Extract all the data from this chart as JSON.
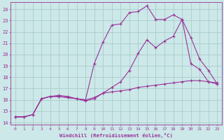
{
  "xlabel": "Windchill (Refroidissement éolien,°C)",
  "background_color": "#cce8e8",
  "grid_color": "#aacccc",
  "line_color": "#993399",
  "xlim": [
    -0.5,
    23.5
  ],
  "ylim": [
    13.8,
    24.6
  ],
  "yticks": [
    14,
    15,
    16,
    17,
    18,
    19,
    20,
    21,
    22,
    23,
    24
  ],
  "xticks": [
    0,
    1,
    2,
    3,
    4,
    5,
    6,
    7,
    8,
    9,
    10,
    11,
    12,
    13,
    14,
    15,
    16,
    17,
    18,
    19,
    20,
    21,
    22,
    23
  ],
  "series": [
    {
      "x": [
        0,
        1,
        2,
        3,
        4,
        5,
        6,
        7,
        8,
        9,
        10,
        11,
        12,
        13,
        14,
        15,
        16,
        17,
        18,
        19,
        20,
        21,
        22,
        23
      ],
      "y": [
        14.5,
        14.5,
        14.7,
        16.1,
        16.3,
        16.3,
        16.2,
        16.1,
        16.0,
        19.2,
        21.1,
        22.6,
        22.7,
        23.7,
        23.8,
        24.3,
        23.1,
        23.1,
        23.5,
        23.1,
        21.5,
        19.6,
        18.6,
        17.4
      ]
    },
    {
      "x": [
        0,
        1,
        2,
        3,
        4,
        5,
        6,
        7,
        8,
        9,
        10,
        11,
        12,
        13,
        14,
        15,
        16,
        17,
        18,
        19,
        20,
        21,
        22,
        23
      ],
      "y": [
        14.5,
        14.5,
        14.7,
        16.1,
        16.3,
        16.4,
        16.3,
        16.1,
        15.9,
        16.1,
        16.6,
        17.1,
        17.6,
        18.6,
        20.1,
        21.3,
        20.6,
        21.2,
        21.6,
        23.1,
        19.2,
        18.7,
        17.6,
        17.4
      ]
    },
    {
      "x": [
        0,
        1,
        2,
        3,
        4,
        5,
        6,
        7,
        8,
        9,
        10,
        11,
        12,
        13,
        14,
        15,
        16,
        17,
        18,
        19,
        20,
        21,
        22,
        23
      ],
      "y": [
        14.5,
        14.5,
        14.7,
        16.1,
        16.3,
        16.3,
        16.2,
        16.1,
        16.0,
        16.2,
        16.6,
        16.7,
        16.8,
        16.9,
        17.1,
        17.2,
        17.3,
        17.4,
        17.5,
        17.6,
        17.7,
        17.7,
        17.6,
        17.5
      ]
    }
  ]
}
